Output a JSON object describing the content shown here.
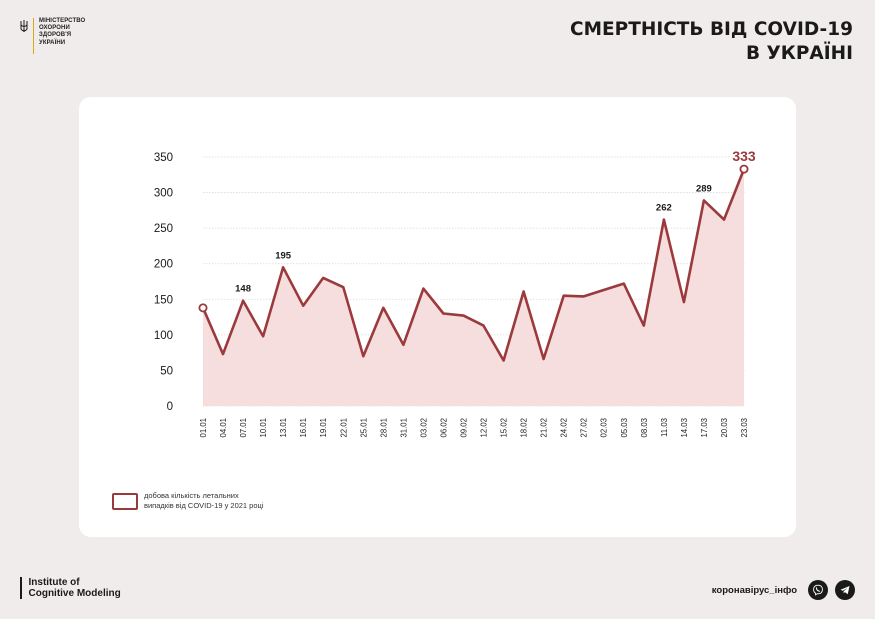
{
  "header": {
    "logo_lines": [
      "МІНІСТЕРСТВО",
      "ОХОРОНИ",
      "ЗДОРОВ'Я",
      "УКРАЇНИ"
    ],
    "title_line1": "СМЕРТНІСТЬ ВІД COVID-19",
    "title_line2": "В УКРАЇНІ"
  },
  "legend": {
    "line1": "добова кількість летальних",
    "line2": "випадків від COVID-19 у 2021 році"
  },
  "footer": {
    "institute_line1": "Institute of",
    "institute_line2": "Cognitive Modeling",
    "hashtag": "коронавірус_інфо",
    "icons": [
      "viber-icon",
      "telegram-icon"
    ]
  },
  "colors": {
    "line": "#9b3a3c",
    "fill": "#f7dede",
    "accent_label": "#9b3a3c",
    "grid": "#d9d9d9"
  },
  "chart_data": {
    "type": "area",
    "categories": [
      "01.01",
      "04.01",
      "07.01",
      "10.01",
      "13.01",
      "16.01",
      "19.01",
      "22.01",
      "25.01",
      "28.01",
      "31.01",
      "03.02",
      "06.02",
      "09.02",
      "12.02",
      "15.02",
      "18.02",
      "21.02",
      "24.02",
      "27.02",
      "02.03",
      "05.03",
      "08.03",
      "11.03",
      "14.03",
      "17.03",
      "20.03",
      "23.03"
    ],
    "values": [
      138,
      73,
      148,
      98,
      195,
      141,
      180,
      167,
      70,
      138,
      86,
      165,
      130,
      127,
      113,
      64,
      161,
      66,
      155,
      154,
      163,
      172,
      113,
      262,
      146,
      289,
      262,
      333
    ],
    "annotations": [
      {
        "category": "07.01",
        "label": "148"
      },
      {
        "category": "13.01",
        "label": "195"
      },
      {
        "category": "11.03",
        "label": "262"
      },
      {
        "category": "17.03",
        "label": "289"
      },
      {
        "category": "23.03",
        "label": "333"
      }
    ],
    "yticks": [
      "0",
      "50",
      "100",
      "150",
      "200",
      "250",
      "300",
      "350"
    ],
    "ylim": [
      0,
      350
    ],
    "grid": true,
    "legend_position": "bottom-left"
  }
}
